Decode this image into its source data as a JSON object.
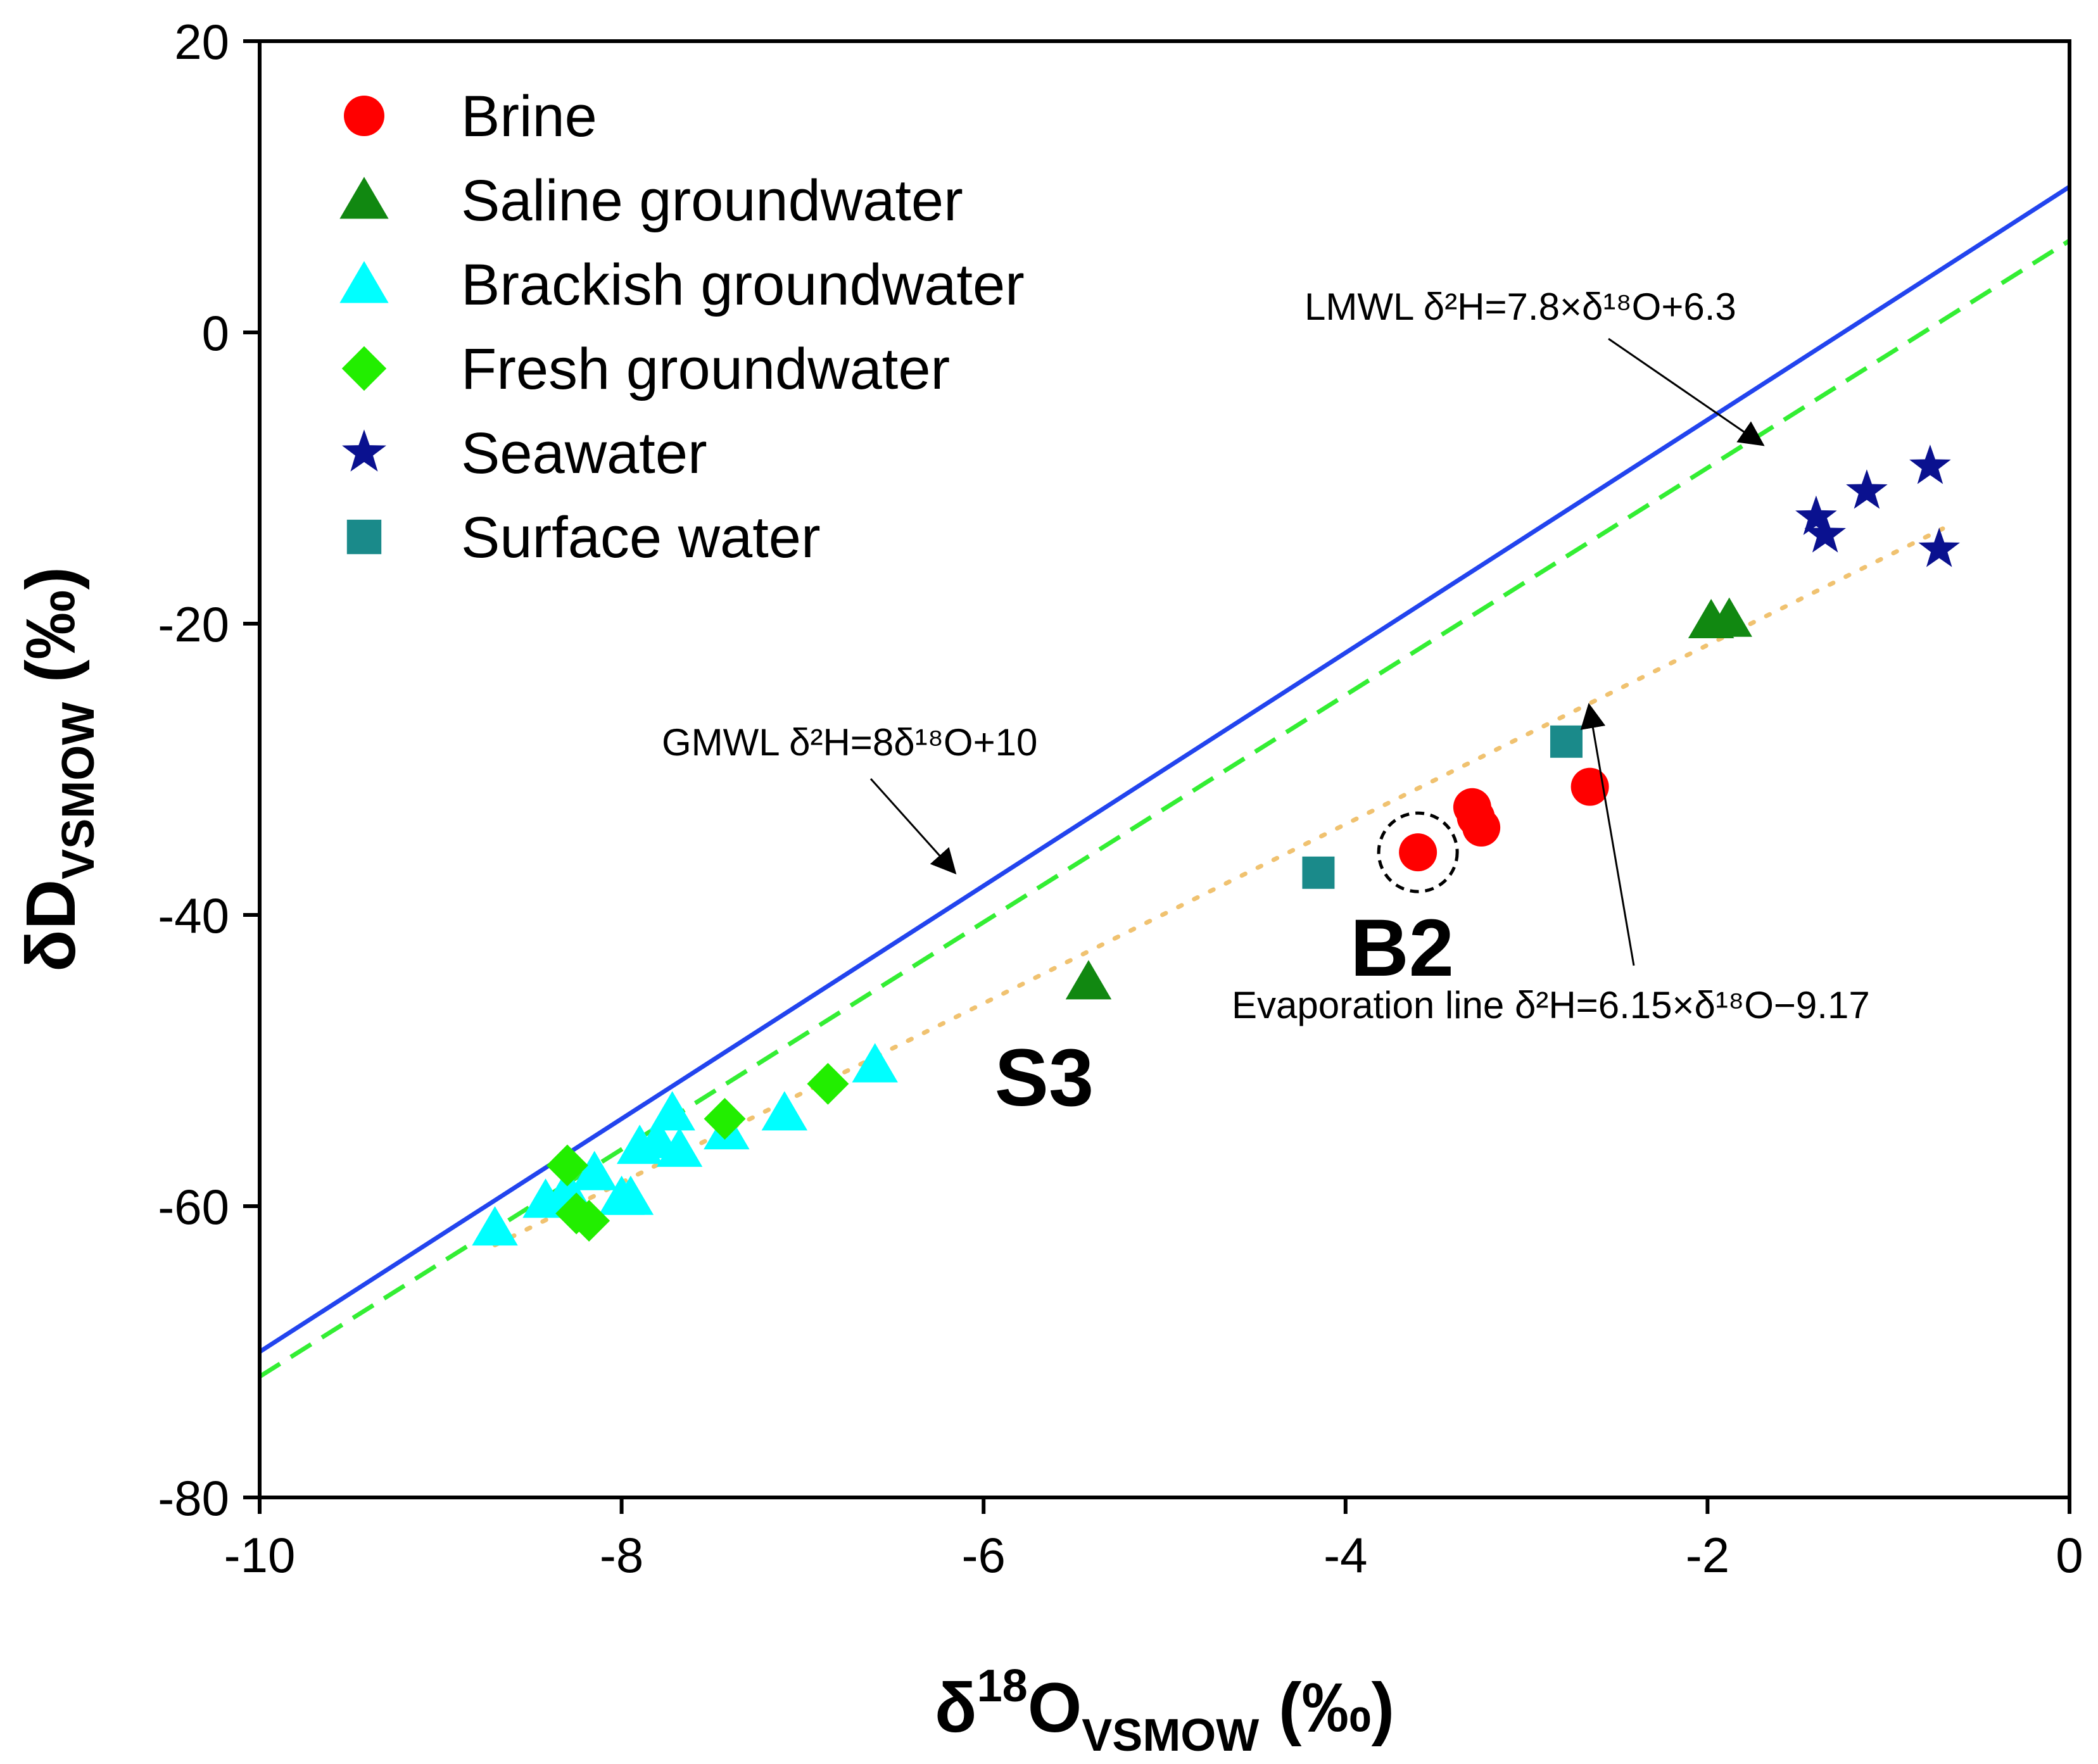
{
  "chart_data": {
    "type": "scatter",
    "title": "",
    "xlabel": {
      "main": "δ",
      "sup": "18",
      "mid": "O",
      "sub": "VSMOW",
      "unit": " (‰)"
    },
    "ylabel": {
      "main": "δD",
      "sub": "VSMOW",
      "unit": " (‰)"
    },
    "xlim": [
      -10,
      0
    ],
    "ylim": [
      -80,
      20
    ],
    "x_ticks": [
      -10,
      -8,
      -6,
      -4,
      -2,
      0
    ],
    "x_tick_labels": [
      "-10",
      "-8",
      "-6",
      "-4",
      "-2",
      "0"
    ],
    "y_ticks": [
      -80,
      -60,
      -40,
      -20,
      0,
      20
    ],
    "y_tick_labels": [
      "-80",
      "-60",
      "-40",
      "-20",
      "0",
      "20"
    ],
    "grid": false,
    "legend_position": "top-left",
    "series": [
      {
        "name": "Brine",
        "marker": "circle",
        "color": "#ff0000",
        "points": [
          [
            -3.6,
            -35.7
          ],
          [
            -3.3,
            -32.6
          ],
          [
            -3.28,
            -33.3
          ],
          [
            -3.25,
            -34.0
          ],
          [
            -2.65,
            -31.2
          ]
        ]
      },
      {
        "name": "Saline groundwater",
        "marker": "triangle",
        "color": "#118811",
        "points": [
          [
            -5.42,
            -44.6
          ],
          [
            -1.98,
            -19.8
          ],
          [
            -1.88,
            -19.7
          ]
        ]
      },
      {
        "name": "Brackish groundwater",
        "marker": "triangle",
        "color": "#00ffff",
        "points": [
          [
            -8.7,
            -61.5
          ],
          [
            -8.42,
            -59.6
          ],
          [
            -8.3,
            -58.9
          ],
          [
            -8.15,
            -57.7
          ],
          [
            -8.0,
            -59.4
          ],
          [
            -7.95,
            -59.4
          ],
          [
            -7.9,
            -55.9
          ],
          [
            -7.8,
            -55.5
          ],
          [
            -7.72,
            -53.6
          ],
          [
            -7.68,
            -56.1
          ],
          [
            -7.42,
            -54.9
          ],
          [
            -7.1,
            -53.6
          ],
          [
            -6.6,
            -50.3
          ]
        ]
      },
      {
        "name": "Fresh groundwater",
        "marker": "diamond",
        "color": "#22ee00",
        "points": [
          [
            -8.3,
            -57.2
          ],
          [
            -8.25,
            -60.5
          ],
          [
            -8.18,
            -61.0
          ],
          [
            -7.43,
            -54.0
          ],
          [
            -6.86,
            -51.6
          ]
        ]
      },
      {
        "name": "Seawater",
        "marker": "star",
        "color": "#0a118f",
        "points": [
          [
            -1.4,
            -12.7
          ],
          [
            -1.35,
            -13.9
          ],
          [
            -1.12,
            -10.9
          ],
          [
            -0.77,
            -9.2
          ],
          [
            -0.72,
            -14.9
          ]
        ]
      },
      {
        "name": "Surface water",
        "marker": "square",
        "color": "#1a8a8a",
        "points": [
          [
            -4.15,
            -37.1
          ],
          [
            -2.78,
            -28.1
          ]
        ]
      }
    ],
    "lines": [
      {
        "name": "GMWL",
        "slope": 8,
        "intercept": 10,
        "x_range": [
          -10,
          0
        ],
        "style": "solid",
        "color": "#2244ee"
      },
      {
        "name": "LMWL",
        "slope": 7.8,
        "intercept": 6.3,
        "x_range": [
          -10,
          0
        ],
        "style": "dashed",
        "color": "#33ee33"
      },
      {
        "name": "Evaporation line",
        "slope": 6.15,
        "intercept": -9.17,
        "x_range": [
          -8.7,
          -0.7
        ],
        "style": "dotted",
        "color": "#f0c270"
      }
    ],
    "annotations": [
      {
        "label": "GMWL",
        "text": "GMWL δ²H=8δ¹⁸O+10"
      },
      {
        "label": "LMWL",
        "text": "LMWL δ²H=7.8×δ¹⁸O+6.3"
      },
      {
        "label": "Evaporation line",
        "text": "Evaporation line δ²H=6.15×δ¹⁸O−9.17"
      }
    ],
    "sample_labels": [
      {
        "text": "B2",
        "x": -3.6,
        "y": -35.7,
        "circled": true
      },
      {
        "text": "S3",
        "x": -5.42,
        "y": -44.6,
        "circled": false
      }
    ]
  }
}
